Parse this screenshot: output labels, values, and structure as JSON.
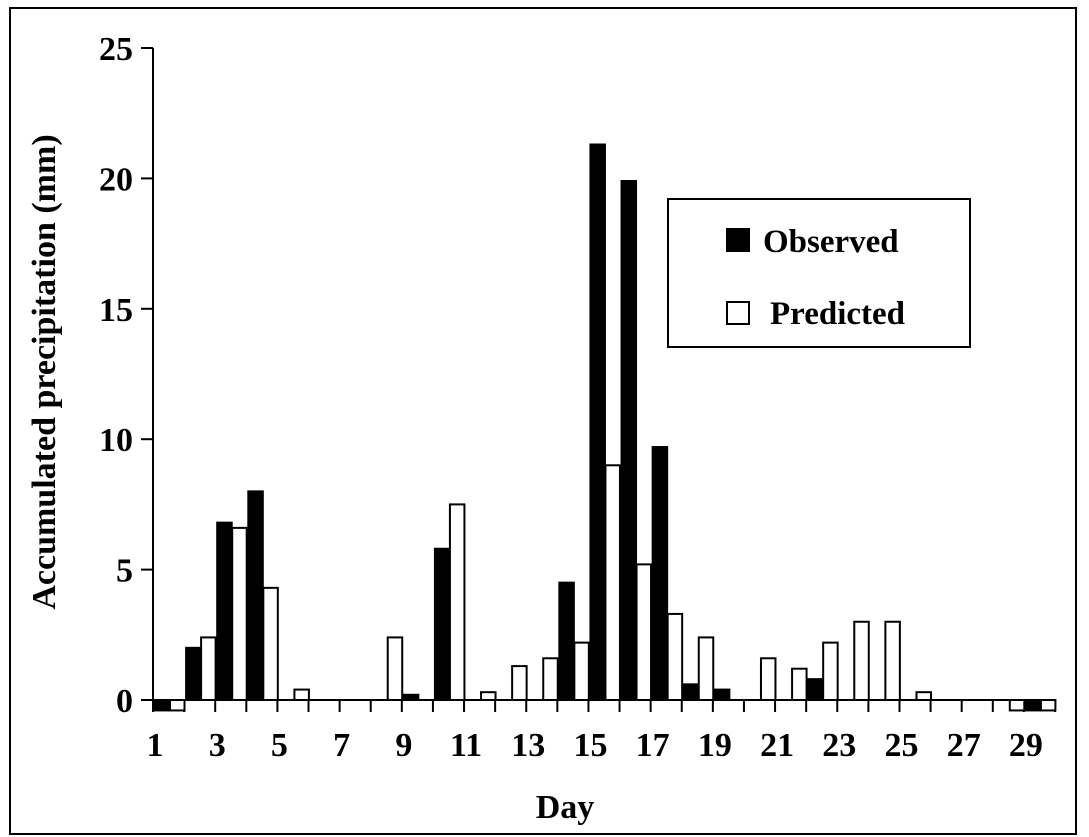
{
  "chart_data": {
    "type": "bar",
    "xlabel": "Day",
    "ylabel": "Accumulated precipitation (mm)",
    "ylim": [
      0,
      25
    ],
    "yticks": [
      0,
      5,
      10,
      15,
      20,
      25
    ],
    "xlim": [
      1,
      29
    ],
    "xtick_labels": [
      "1",
      "3",
      "5",
      "7",
      "9",
      "11",
      "13",
      "15",
      "17",
      "19",
      "21",
      "23",
      "25",
      "27",
      "29"
    ],
    "legend_position": "top-right",
    "legend": [
      {
        "name": "Observed",
        "color": "#000000"
      },
      {
        "name": "Predicted",
        "color": "#ffffff"
      }
    ],
    "days": [
      1,
      2,
      3,
      4,
      5,
      6,
      7,
      8,
      9,
      10,
      11,
      12,
      13,
      14,
      15,
      16,
      17,
      18,
      19,
      20,
      21,
      22,
      23,
      24,
      25,
      26,
      27,
      28,
      29
    ],
    "series": [
      {
        "name": "Observed",
        "color": "#000000",
        "values": [
          -0.4,
          2.0,
          6.8,
          8.0,
          0,
          0,
          0,
          0,
          0.2,
          5.8,
          0,
          0,
          0,
          4.5,
          21.3,
          19.9,
          9.7,
          0.6,
          0.4,
          0,
          0,
          0.8,
          0,
          0,
          0,
          0,
          0,
          0,
          -0.4
        ]
      },
      {
        "name": "Predicted",
        "color": "#ffffff",
        "values": [
          -0.4,
          2.4,
          6.6,
          4.3,
          0.4,
          0,
          0,
          2.4,
          0,
          7.5,
          0.3,
          1.3,
          1.6,
          2.2,
          9.0,
          5.2,
          3.3,
          2.4,
          0,
          1.6,
          1.2,
          2.2,
          3.0,
          3.0,
          0.3,
          0,
          0,
          -0.4,
          -0.4
        ]
      }
    ]
  }
}
